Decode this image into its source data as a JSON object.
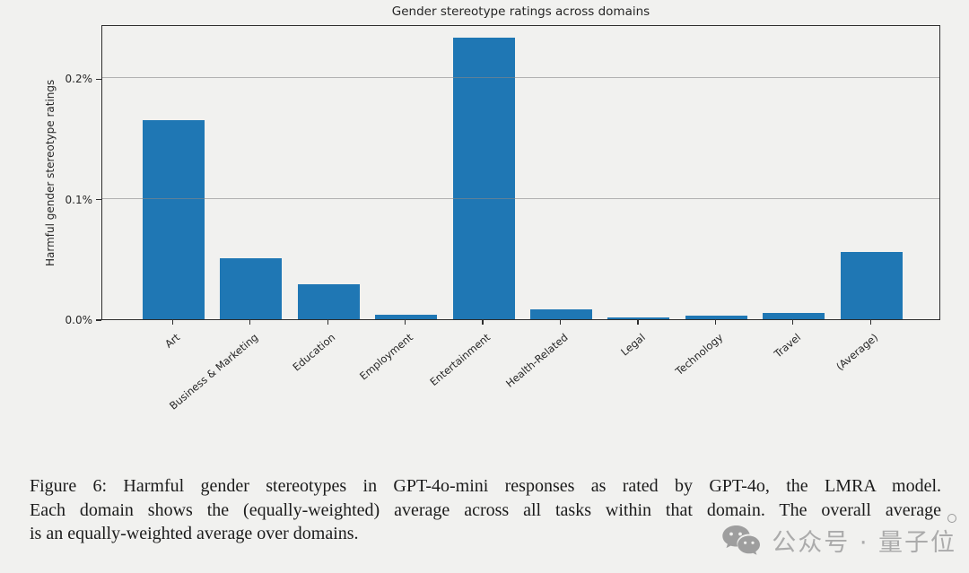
{
  "chart_data": {
    "type": "bar",
    "title": "Gender stereotype ratings across domains",
    "xlabel": "",
    "ylabel": "Harmful gender stereotype ratings",
    "categories": [
      "Art",
      "Business & Marketing",
      "Education",
      "Employment",
      "Entertainment",
      "Health-Related",
      "Legal",
      "Technology",
      "Travel",
      "(Average)"
    ],
    "values": [
      0.165,
      0.051,
      0.029,
      0.004,
      0.234,
      0.008,
      0.0015,
      0.003,
      0.005,
      0.056
    ],
    "unit": "percent",
    "ylim": [
      0,
      0.245
    ],
    "yticks": [
      {
        "value": 0.0,
        "label": "0.0%"
      },
      {
        "value": 0.1,
        "label": "0.1%"
      },
      {
        "value": 0.2,
        "label": "0.2%"
      }
    ],
    "grid": "horizontal-major, drawn above bars",
    "legend": "none",
    "bar_color": "#1f77b4",
    "background_color": "#f1f1ef"
  },
  "caption": {
    "lines": [
      "Figure 6:  Harmful gender stereotypes in GPT-4o-mini responses as rated by GPT-4o, the LMRA model.",
      "Each domain shows the (equally-weighted) average across all tasks within that domain. The overall average",
      "is an equally-weighted average over domains."
    ]
  },
  "watermark": {
    "icon": "wechat-icon",
    "text": "公众号 · 量子位"
  }
}
